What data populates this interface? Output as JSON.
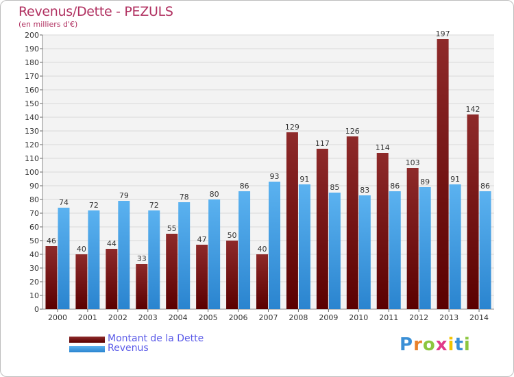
{
  "chart_data": {
    "type": "bar",
    "title": "Revenus/Dette - PEZULS",
    "subtitle": "(en milliers d'€)",
    "categories": [
      "2000",
      "2001",
      "2002",
      "2003",
      "2004",
      "2005",
      "2006",
      "2007",
      "2008",
      "2009",
      "2010",
      "2011",
      "2012",
      "2013",
      "2014"
    ],
    "series": [
      {
        "name": "Montant de la Dette",
        "values": [
          46,
          40,
          44,
          33,
          55,
          47,
          50,
          40,
          129,
          117,
          126,
          114,
          103,
          197,
          142
        ],
        "color": "#7a1c1c"
      },
      {
        "name": "Revenus",
        "values": [
          74,
          72,
          79,
          72,
          78,
          80,
          86,
          93,
          91,
          85,
          83,
          86,
          89,
          91,
          86
        ],
        "color": "#3d9ee6"
      }
    ],
    "ylim": [
      0,
      200
    ],
    "ytick_step": 10,
    "grid": true,
    "legend_placement": "bottom-left"
  },
  "logo": {
    "letters": [
      "P",
      "r",
      "o",
      "x",
      "i",
      "t",
      "i"
    ],
    "colors": [
      "#3a8fd6",
      "#e8802a",
      "#8cc63f",
      "#e03a8a",
      "#f3c300",
      "#3a8fd6",
      "#8cc63f"
    ]
  }
}
